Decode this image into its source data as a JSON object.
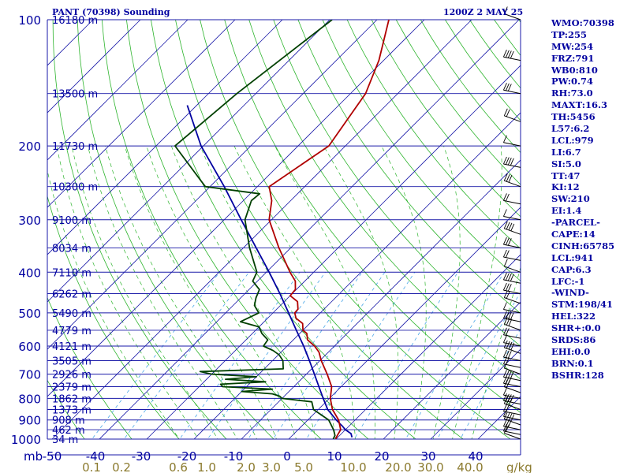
{
  "header": {
    "station": "PANT (70398) Sounding",
    "time": "1200Z  2 MAY 25"
  },
  "indices": [
    "WMO:70398",
    "TP:255",
    "MW:254",
    "FRZ:791",
    "WB0:810",
    "PW:0.74",
    "RH:73.0",
    "MAXT:16.3",
    "TH:5456",
    "L57:6.2",
    "LCL:979",
    "LI:6.7",
    "SI:5.0",
    "TT:47",
    "KI:12",
    "SW:210",
    "EI:1.4",
    "-PARCEL-",
    "CAPE:14",
    "CINH:65785",
    "LCL:941",
    "CAP:6.3",
    "LFC:-1",
    "-WIND-",
    "STM:198/41",
    "HEL:322",
    "SHR+:0.0",
    "SRDS:86",
    "EHI:0.0",
    "BRN:0.1",
    "BSHR:128"
  ],
  "chart_data": {
    "type": "line",
    "chart_kind": "skew-T log-P",
    "y_axis": {
      "unit_label": "mb",
      "scale": "log",
      "range": [
        1000,
        100
      ],
      "ticks": [
        "100",
        "200",
        "300",
        "400",
        "500",
        "600",
        "700",
        "800",
        "900",
        "1000"
      ]
    },
    "x_axis": {
      "unit_label": "",
      "range": [
        -50,
        50
      ],
      "ticks": [
        "-50",
        "-40",
        "-30",
        "-20",
        "-10",
        "0",
        "10",
        "20",
        "30",
        "40"
      ]
    },
    "mixing_ratio_axis": {
      "unit_label": "g/kg",
      "ticks": [
        "0.1",
        "0.2",
        "0.6",
        "1.0",
        "2.0",
        "3.0",
        "5.0",
        "10.0",
        "20.0",
        "30.0",
        "40.0"
      ]
    },
    "height_labels": [
      {
        "p": 100,
        "label": "16180 m"
      },
      {
        "p": 150,
        "label": "13500 m"
      },
      {
        "p": 200,
        "label": "11730 m"
      },
      {
        "p": 250,
        "label": "10300 m"
      },
      {
        "p": 300,
        "label": "9100 m"
      },
      {
        "p": 350,
        "label": "8034 m"
      },
      {
        "p": 400,
        "label": "7110 m"
      },
      {
        "p": 450,
        "label": "6262 m"
      },
      {
        "p": 500,
        "label": "5490 m"
      },
      {
        "p": 550,
        "label": "4779 m"
      },
      {
        "p": 600,
        "label": "4121 m"
      },
      {
        "p": 650,
        "label": "3505 m"
      },
      {
        "p": 700,
        "label": "2926 m"
      },
      {
        "p": 750,
        "label": "2379 m"
      },
      {
        "p": 800,
        "label": "1862 m"
      },
      {
        "p": 850,
        "label": "1373 m"
      },
      {
        "p": 900,
        "label": "908 m"
      },
      {
        "p": 950,
        "label": "462 m"
      },
      {
        "p": 1000,
        "label": "34 m"
      }
    ],
    "temperature": {
      "color": "#b00000",
      "points": [
        [
          1000,
          9.9
        ],
        [
          980,
          9.5
        ],
        [
          950,
          9.0
        ],
        [
          900,
          6.5
        ],
        [
          850,
          3.0
        ],
        [
          800,
          0.2
        ],
        [
          750,
          -2.0
        ],
        [
          700,
          -5.6
        ],
        [
          650,
          -9.7
        ],
        [
          620,
          -12.0
        ],
        [
          600,
          -14.2
        ],
        [
          580,
          -17.0
        ],
        [
          560,
          -18.5
        ],
        [
          550,
          -20.0
        ],
        [
          530,
          -21.5
        ],
        [
          515,
          -24.0
        ],
        [
          500,
          -25.4
        ],
        [
          490,
          -25.5
        ],
        [
          470,
          -27.2
        ],
        [
          455,
          -30.0
        ],
        [
          440,
          -30.2
        ],
        [
          420,
          -32.0
        ],
        [
          400,
          -35.0
        ],
        [
          350,
          -42.5
        ],
        [
          300,
          -50.5
        ],
        [
          270,
          -54.0
        ],
        [
          250,
          -57.5
        ],
        [
          200,
          -53.5
        ],
        [
          150,
          -56.8
        ],
        [
          125,
          -61.0
        ],
        [
          100,
          -67.5
        ]
      ]
    },
    "dewpoint": {
      "color": "#004000",
      "points": [
        [
          1000,
          9.4
        ],
        [
          980,
          9.0
        ],
        [
          950,
          7.5
        ],
        [
          900,
          4.4
        ],
        [
          850,
          -1.0
        ],
        [
          815,
          -3.0
        ],
        [
          800,
          -10.0
        ],
        [
          790,
          -11.0
        ],
        [
          780,
          -13.0
        ],
        [
          770,
          -20.0
        ],
        [
          760,
          -14.0
        ],
        [
          750,
          -25.0
        ],
        [
          740,
          -26.0
        ],
        [
          730,
          -17.0
        ],
        [
          720,
          -26.0
        ],
        [
          710,
          -20.0
        ],
        [
          700,
          -30.0
        ],
        [
          690,
          -33.0
        ],
        [
          680,
          -16.0
        ],
        [
          650,
          -17.8
        ],
        [
          630,
          -19.8
        ],
        [
          615,
          -22.0
        ],
        [
          600,
          -25.0
        ],
        [
          580,
          -25.4
        ],
        [
          560,
          -28.0
        ],
        [
          540,
          -30.0
        ],
        [
          525,
          -35.0
        ],
        [
          500,
          -33.0
        ],
        [
          480,
          -35.5
        ],
        [
          460,
          -36.8
        ],
        [
          440,
          -37.8
        ],
        [
          420,
          -41.0
        ],
        [
          400,
          -42.0
        ],
        [
          350,
          -48.7
        ],
        [
          300,
          -55.6
        ],
        [
          270,
          -58.3
        ],
        [
          260,
          -58.0
        ],
        [
          250,
          -71.0
        ],
        [
          200,
          -86.0
        ],
        [
          150,
          -84.0
        ],
        [
          100,
          -79.5
        ]
      ]
    },
    "parcel_path": {
      "color": "#0000a0",
      "points": [
        [
          990,
          13.0
        ],
        [
          970,
          12.0
        ],
        [
          950,
          10.0
        ],
        [
          930,
          8.5
        ],
        [
          900,
          6.0
        ],
        [
          850,
          2.0
        ],
        [
          800,
          -1.3
        ],
        [
          750,
          -4.7
        ],
        [
          700,
          -8.3
        ],
        [
          650,
          -12.2
        ],
        [
          600,
          -16.5
        ],
        [
          550,
          -21.4
        ],
        [
          500,
          -26.7
        ],
        [
          450,
          -32.6
        ],
        [
          400,
          -39.4
        ],
        [
          350,
          -47.3
        ],
        [
          300,
          -56.4
        ],
        [
          250,
          -67.0
        ],
        [
          200,
          -80.5
        ],
        [
          160,
          -92.0
        ]
      ]
    }
  }
}
